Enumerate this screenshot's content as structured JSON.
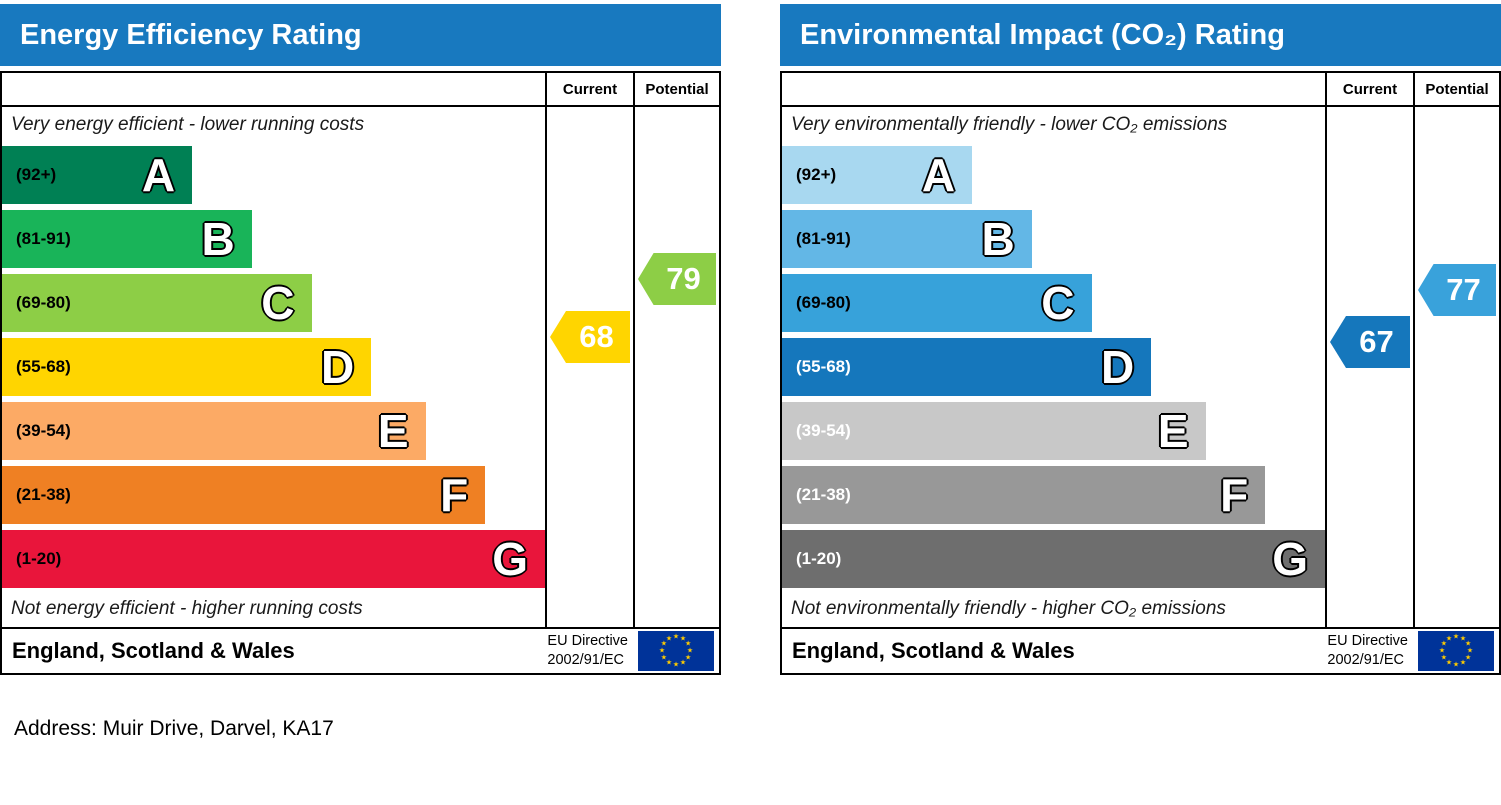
{
  "address": "Address: Muir Drive, Darvel, KA17",
  "chart_data": [
    {
      "type": "bar",
      "subtype": "epc-rating",
      "title": "Energy Efficiency Rating",
      "header_color": "#1879bf",
      "columns": {
        "current": "Current",
        "potential": "Potential"
      },
      "top_note": "Very energy efficient - lower running costs",
      "bottom_note": "Not energy efficient - higher running costs",
      "footer": {
        "region": "England, Scotland & Wales",
        "directive_line1": "EU Directive",
        "directive_line2": "2002/91/EC"
      },
      "bands": [
        {
          "letter": "A",
          "range_label": "(92+)",
          "min": 92,
          "max": 100,
          "color": "#008054",
          "width_pct": 35,
          "text_color": "#000000"
        },
        {
          "letter": "B",
          "range_label": "(81-91)",
          "min": 81,
          "max": 91,
          "color": "#19b459",
          "width_pct": 46,
          "text_color": "#000000"
        },
        {
          "letter": "C",
          "range_label": "(69-80)",
          "min": 69,
          "max": 80,
          "color": "#8dce46",
          "width_pct": 57,
          "text_color": "#000000"
        },
        {
          "letter": "D",
          "range_label": "(55-68)",
          "min": 55,
          "max": 68,
          "color": "#ffd500",
          "width_pct": 68,
          "text_color": "#000000"
        },
        {
          "letter": "E",
          "range_label": "(39-54)",
          "min": 39,
          "max": 54,
          "color": "#fcaa65",
          "width_pct": 78,
          "text_color": "#000000"
        },
        {
          "letter": "F",
          "range_label": "(21-38)",
          "min": 21,
          "max": 38,
          "color": "#ef8023",
          "width_pct": 89,
          "text_color": "#000000"
        },
        {
          "letter": "G",
          "range_label": "(1-20)",
          "min": 1,
          "max": 20,
          "color": "#e9153b",
          "width_pct": 100,
          "text_color": "#000000"
        }
      ],
      "current": {
        "value": 68,
        "color": "#ffd500"
      },
      "potential": {
        "value": 79,
        "color": "#8dce46"
      }
    },
    {
      "type": "bar",
      "subtype": "epc-rating",
      "title": "Environmental Impact (CO₂) Rating",
      "header_color": "#1879bf",
      "columns": {
        "current": "Current",
        "potential": "Potential"
      },
      "top_note": "Very environmentally friendly - lower CO₂ emissions",
      "bottom_note": "Not environmentally friendly - higher CO₂ emissions",
      "footer": {
        "region": "England, Scotland & Wales",
        "directive_line1": "EU Directive",
        "directive_line2": "2002/91/EC"
      },
      "bands": [
        {
          "letter": "A",
          "range_label": "(92+)",
          "min": 92,
          "max": 100,
          "color": "#a8d8f0",
          "width_pct": 35,
          "text_color": "#000000"
        },
        {
          "letter": "B",
          "range_label": "(81-91)",
          "min": 81,
          "max": 91,
          "color": "#63b7e6",
          "width_pct": 46,
          "text_color": "#000000"
        },
        {
          "letter": "C",
          "range_label": "(69-80)",
          "min": 69,
          "max": 80,
          "color": "#37a2da",
          "width_pct": 57,
          "text_color": "#000000"
        },
        {
          "letter": "D",
          "range_label": "(55-68)",
          "min": 55,
          "max": 68,
          "color": "#1577bc",
          "width_pct": 68,
          "text_color": "#ffffff"
        },
        {
          "letter": "E",
          "range_label": "(39-54)",
          "min": 39,
          "max": 54,
          "color": "#c8c8c8",
          "width_pct": 78,
          "text_color": "#ffffff"
        },
        {
          "letter": "F",
          "range_label": "(21-38)",
          "min": 21,
          "max": 38,
          "color": "#989898",
          "width_pct": 89,
          "text_color": "#ffffff"
        },
        {
          "letter": "G",
          "range_label": "(1-20)",
          "min": 1,
          "max": 20,
          "color": "#6e6e6e",
          "width_pct": 100,
          "text_color": "#ffffff"
        }
      ],
      "current": {
        "value": 67,
        "color": "#1577bc"
      },
      "potential": {
        "value": 77,
        "color": "#39a2db"
      }
    }
  ]
}
